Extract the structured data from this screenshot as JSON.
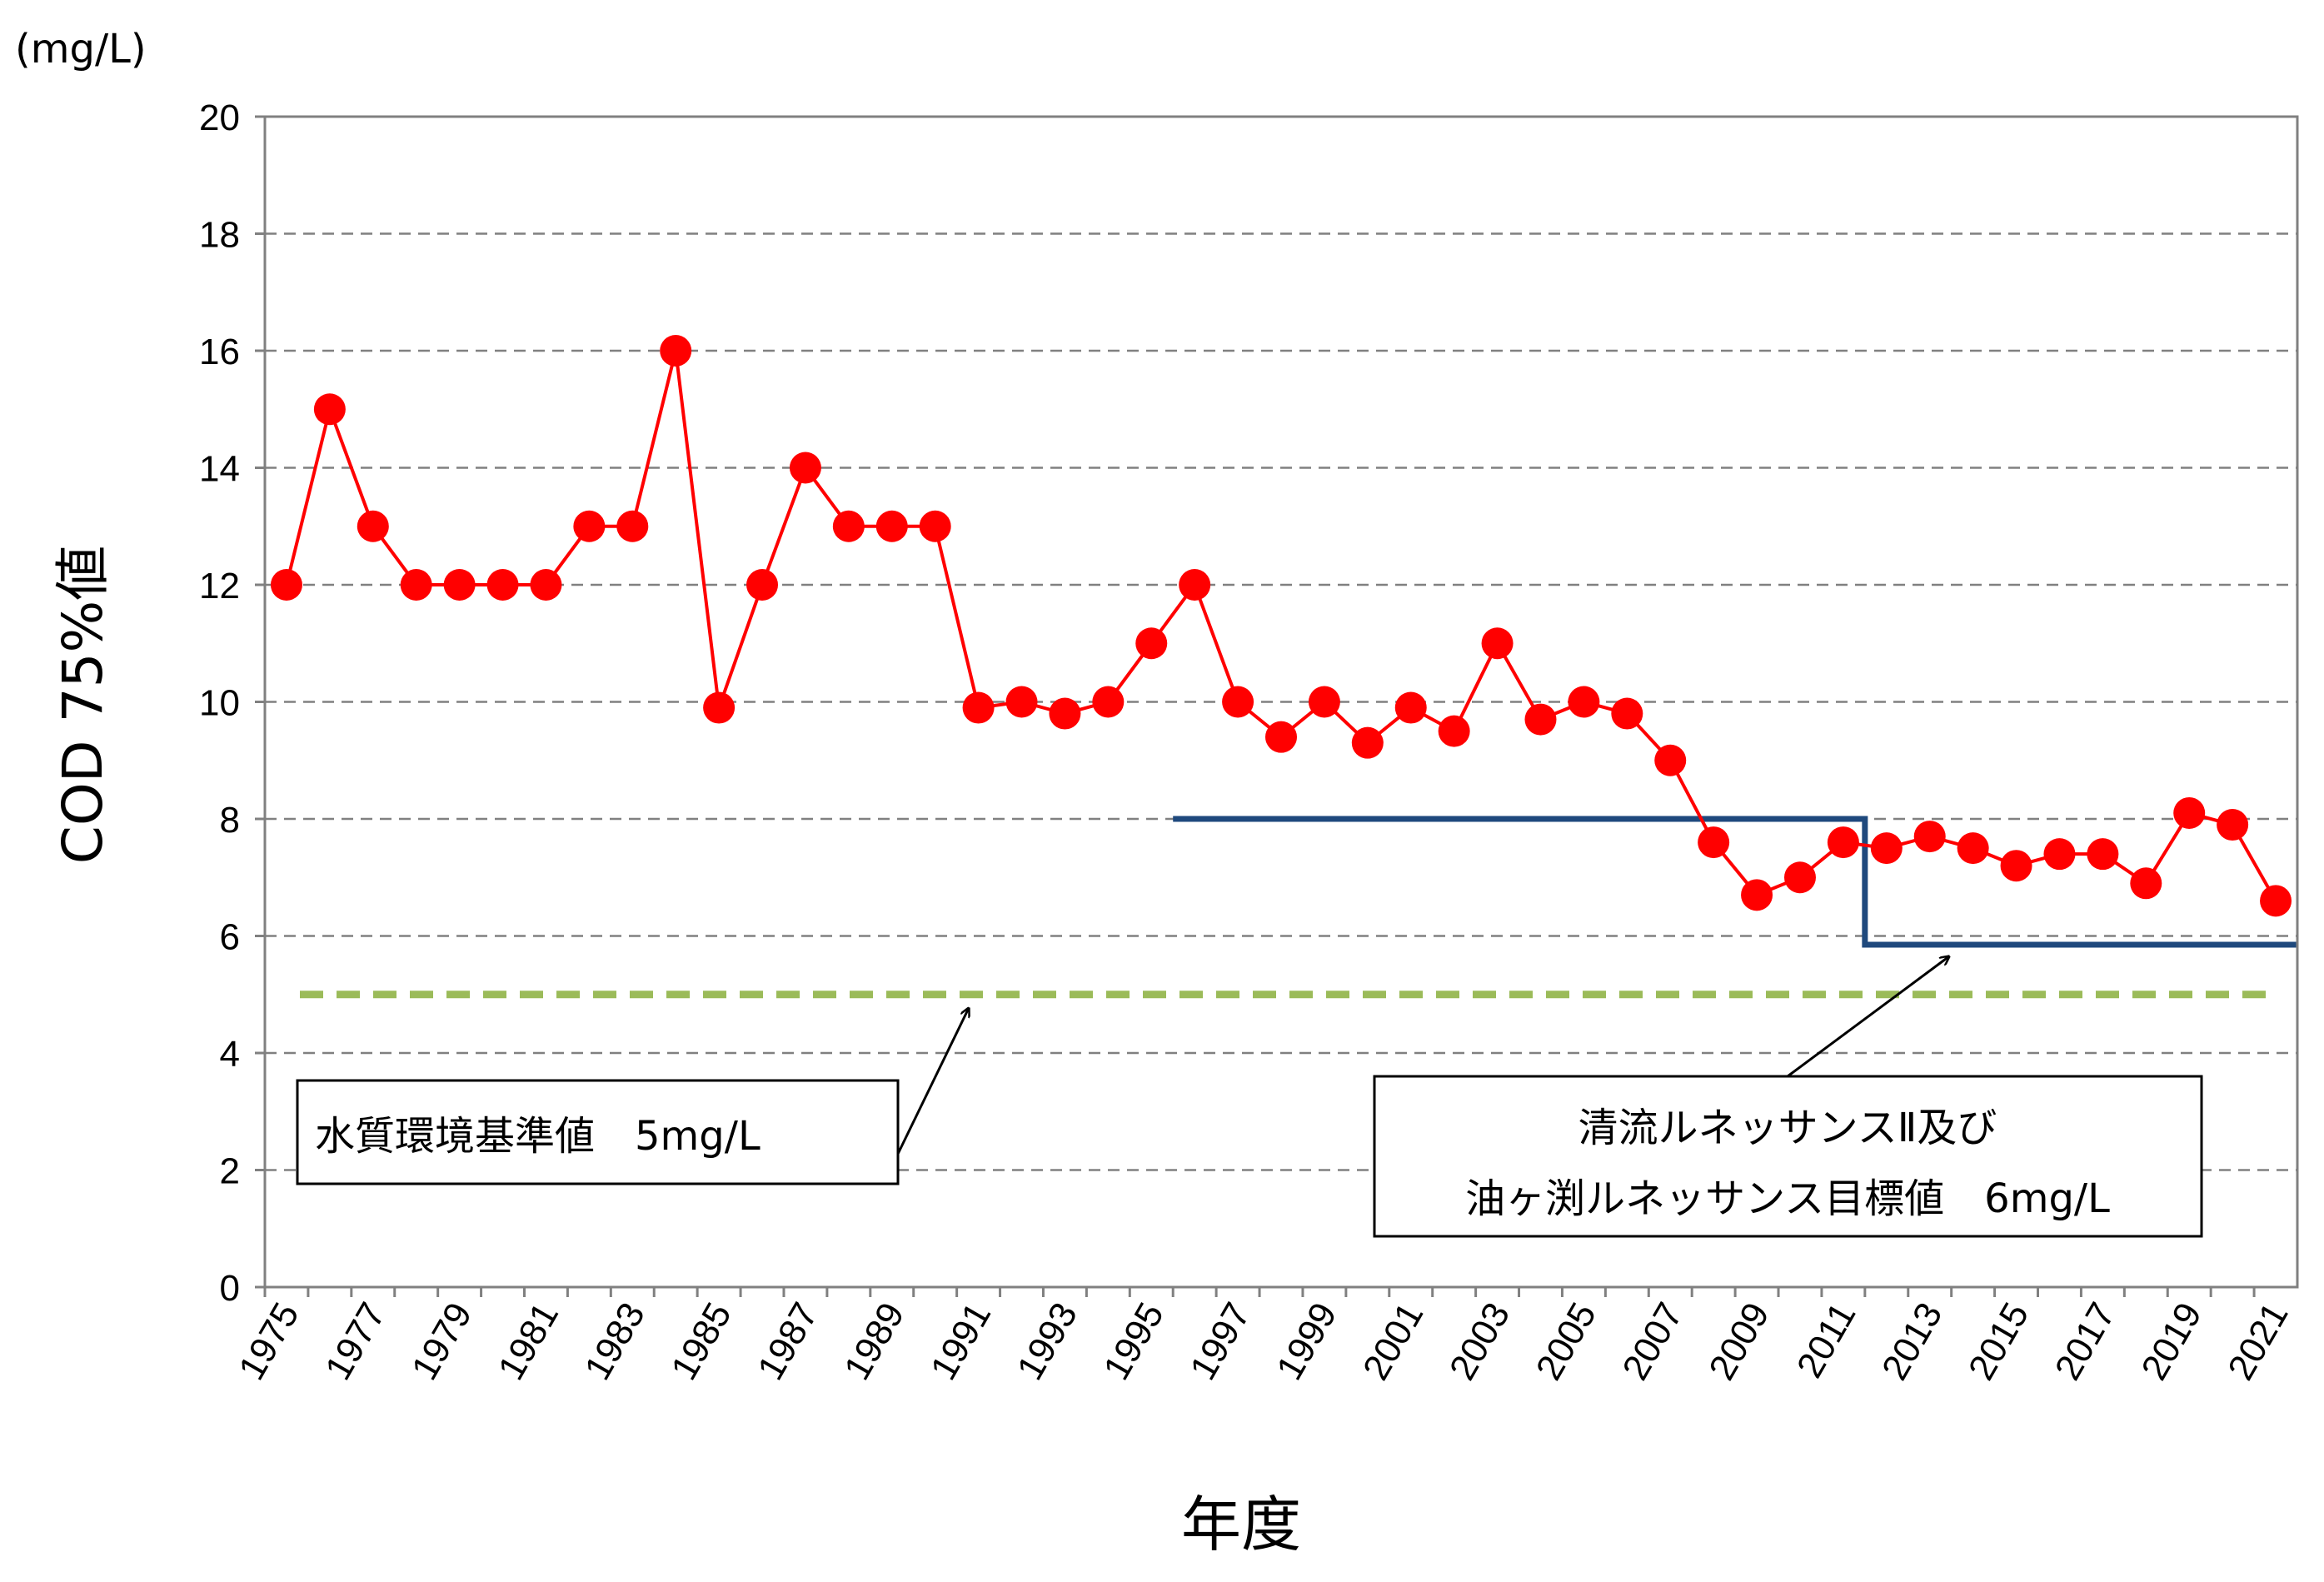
{
  "chart_data": {
    "type": "line",
    "unit_label": "(mg/L)",
    "ylabel": "COD 75%値",
    "xlabel": "年度",
    "ylim": [
      0,
      20
    ],
    "yticks": [
      0,
      2,
      4,
      6,
      8,
      10,
      12,
      14,
      16,
      18,
      20
    ],
    "grid": true,
    "x": [
      1975,
      1976,
      1977,
      1978,
      1979,
      1980,
      1981,
      1982,
      1983,
      1984,
      1985,
      1986,
      1987,
      1988,
      1989,
      1990,
      1991,
      1992,
      1993,
      1994,
      1995,
      1996,
      1997,
      1998,
      1999,
      2000,
      2001,
      2002,
      2003,
      2004,
      2005,
      2006,
      2007,
      2008,
      2009,
      2010,
      2011,
      2012,
      2013,
      2014,
      2015,
      2016,
      2017,
      2018,
      2019,
      2020,
      2021
    ],
    "xtick_labels": [
      "1975",
      "1977",
      "1979",
      "1981",
      "1983",
      "1985",
      "1987",
      "1989",
      "1991",
      "1993",
      "1995",
      "1997",
      "1999",
      "2001",
      "2003",
      "2005",
      "2007",
      "2009",
      "2011",
      "2013",
      "2015",
      "2017",
      "2019",
      "2021"
    ],
    "series": [
      {
        "color": "#ff0000",
        "values": [
          12,
          15,
          13,
          12,
          12,
          12,
          12,
          13,
          13,
          16,
          9.9,
          12,
          14,
          13,
          13,
          13,
          9.9,
          10,
          9.8,
          10,
          11,
          12,
          10,
          9.4,
          10,
          9.3,
          9.9,
          9.5,
          11,
          9.7,
          10,
          9.8,
          9,
          7.6,
          6.7,
          7,
          7.6,
          7.5,
          7.7,
          7.5,
          7.2,
          7.4,
          7.4,
          6.9,
          8.1,
          7.9,
          6.6
        ]
      }
    ],
    "reference_lines": [
      {
        "kind": "water-quality-standard",
        "value": 5,
        "color": "#9bbb59",
        "style": "dashed",
        "label": "水質環境基準値　5mg/L"
      },
      {
        "kind": "renaissance-target",
        "color": "#1f497d",
        "style": "solid",
        "segments": [
          {
            "x_from": 1995.5,
            "x_to": 2011.5,
            "value": 8
          },
          {
            "x_from": 2011.5,
            "x_to": 2021.5,
            "value": 5.85
          }
        ],
        "label_lines": [
          "清流ルネッサンスⅡ及び",
          "油ヶ渕ルネッサンス目標値　6mg/L"
        ]
      }
    ]
  }
}
